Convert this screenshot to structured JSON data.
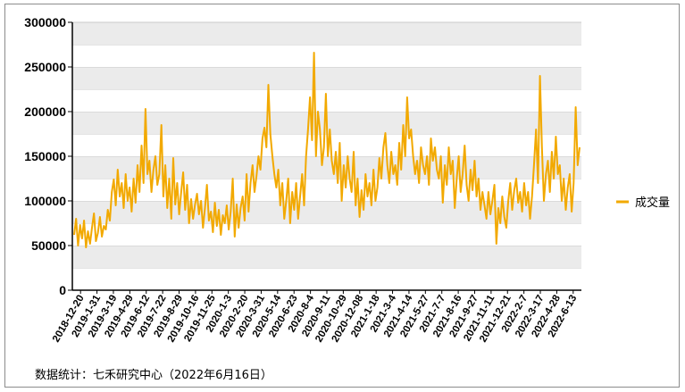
{
  "chart_data": {
    "type": "line",
    "title": "",
    "xlabel": "",
    "ylabel": "",
    "ylim": [
      0,
      300000
    ],
    "y_ticks": [
      0,
      50000,
      100000,
      150000,
      200000,
      250000,
      300000
    ],
    "grid": "horizontal bands",
    "legend_position": "right",
    "x_tick_labels": [
      "2018-12-20",
      "2019-1-31",
      "2019-3-19",
      "2019-4-29",
      "2019-6-12",
      "2019-7-22",
      "2019-8-29",
      "2019-10-16",
      "2019-11-25",
      "2020-1-3",
      "2020-2-20",
      "2020-3-31",
      "2020-5-14",
      "2020-6-23",
      "2020-8-4",
      "2020-9-11",
      "2020-10-29",
      "2020-12-08",
      "2021-1-18",
      "2021-3-4",
      "2021-4-14",
      "2021-5-27",
      "2021-7-7",
      "2021-8-16",
      "2021-9-27",
      "2021-11-11",
      "2021-12-21",
      "2022-2-7",
      "2022-3-17",
      "2022-4-28",
      "2022-6-13"
    ],
    "series": [
      {
        "name": "成交量",
        "color": "#f2a900",
        "values": [
          62000,
          80000,
          50000,
          73000,
          58000,
          78000,
          48000,
          66000,
          52000,
          70000,
          86000,
          55000,
          64000,
          82000,
          60000,
          72000,
          68000,
          90000,
          78000,
          110000,
          124000,
          95000,
          135000,
          105000,
          120000,
          92000,
          130000,
          100000,
          115000,
          88000,
          125000,
          98000,
          140000,
          110000,
          162000,
          120000,
          203000,
          130000,
          145000,
          110000,
          135000,
          150000,
          118000,
          130000,
          185000,
          105000,
          140000,
          92000,
          125000,
          80000,
          148000,
          96000,
          120000,
          85000,
          110000,
          132000,
          90000,
          118000,
          75000,
          102000,
          80000,
          96000,
          108000,
          85000,
          100000,
          70000,
          92000,
          118000,
          78000,
          88000,
          65000,
          98000,
          72000,
          90000,
          62000,
          84000,
          75000,
          95000,
          68000,
          88000,
          125000,
          60000,
          96000,
          70000,
          92000,
          105000,
          78000,
          130000,
          88000,
          120000,
          140000,
          110000,
          128000,
          150000,
          135000,
          170000,
          182000,
          160000,
          230000,
          175000,
          150000,
          130000,
          115000,
          135000,
          95000,
          120000,
          80000,
          100000,
          125000,
          75000,
          110000,
          90000,
          120000,
          80000,
          105000,
          130000,
          95000,
          150000,
          180000,
          216000,
          168000,
          266000,
          150000,
          200000,
          180000,
          140000,
          160000,
          220000,
          150000,
          180000,
          145000,
          130000,
          155000,
          120000,
          165000,
          100000,
          140000,
          115000,
          150000,
          125000,
          110000,
          155000,
          95000,
          125000,
          82000,
          112000,
          90000,
          130000,
          105000,
          120000,
          95000,
          135000,
          100000,
          115000,
          148000,
          125000,
          160000,
          176000,
          140000,
          120000,
          155000,
          130000,
          140000,
          118000,
          165000,
          135000,
          185000,
          150000,
          216000,
          170000,
          180000,
          150000,
          130000,
          145000,
          120000,
          160000,
          140000,
          130000,
          150000,
          118000,
          170000,
          145000,
          160000,
          135000,
          125000,
          150000,
          98000,
          140000,
          118000,
          160000,
          130000,
          145000,
          92000,
          125000,
          150000,
          110000,
          130000,
          162000,
          118000,
          100000,
          135000,
          112000,
          145000,
          105000,
          125000,
          90000,
          110000,
          95000,
          80000,
          110000,
          85000,
          100000,
          118000,
          52000,
          92000,
          75000,
          105000,
          82000,
          70000,
          100000,
          120000,
          90000,
          112000,
          125000,
          98000,
          110000,
          88000,
          120000,
          95000,
          110000,
          80000,
          105000,
          140000,
          180000,
          120000,
          240000,
          160000,
          100000,
          130000,
          145000,
          110000,
          155000,
          125000,
          172000,
          130000,
          140000,
          100000,
          125000,
          90000,
          115000,
          130000,
          88000,
          120000,
          205000,
          140000,
          160000
        ]
      }
    ]
  },
  "legend": {
    "label": "成交量"
  },
  "source_note": "数据统计：七禾研究中心（2022年6月16日）"
}
